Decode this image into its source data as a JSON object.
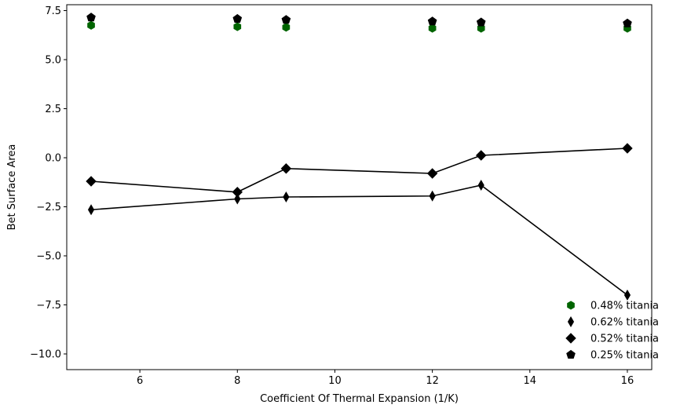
{
  "chart_data": {
    "type": "scatter",
    "title": "",
    "xlabel": "Coefficient Of Thermal Expansion (1/K)",
    "ylabel": "Bet Surface Area",
    "xlim": [
      4.5,
      16.5
    ],
    "ylim": [
      -10.8,
      7.8
    ],
    "xticks": [
      6,
      8,
      10,
      12,
      14,
      16
    ],
    "yticks": [
      -10.0,
      -7.5,
      -5.0,
      -2.5,
      0.0,
      2.5,
      5.0,
      7.5
    ],
    "xtick_labels": [
      "6",
      "8",
      "10",
      "12",
      "14",
      "16"
    ],
    "ytick_labels": [
      "−10.0",
      "−7.5",
      "−5.0",
      "−2.5",
      "0.0",
      "2.5",
      "5.0",
      "7.5"
    ],
    "grid": false,
    "legend_position": "bottom-right",
    "series": [
      {
        "name": "0.48% titania",
        "marker": "hexagon",
        "color": "#006400",
        "connected": false,
        "x": [
          5,
          8,
          9,
          12,
          13,
          16
        ],
        "y": [
          6.75,
          6.68,
          6.65,
          6.6,
          6.6,
          6.6
        ]
      },
      {
        "name": "0.62% titania",
        "marker": "thin-diamond",
        "color": "#000000",
        "connected": true,
        "x": [
          5,
          8,
          9,
          12,
          13,
          16
        ],
        "y": [
          -2.65,
          -2.1,
          -2.0,
          -1.95,
          -1.4,
          -7.0
        ]
      },
      {
        "name": "0.52% titania",
        "marker": "diamond",
        "color": "#000000",
        "connected": true,
        "x": [
          5,
          8,
          9,
          12,
          13,
          16
        ],
        "y": [
          -1.2,
          -1.75,
          -0.55,
          -0.8,
          0.12,
          0.48
        ]
      },
      {
        "name": "0.25% titania",
        "marker": "pentagon",
        "color": "#000000",
        "connected": false,
        "x": [
          5,
          8,
          9,
          12,
          13,
          16
        ],
        "y": [
          7.15,
          7.08,
          7.03,
          6.95,
          6.9,
          6.85
        ]
      }
    ]
  }
}
